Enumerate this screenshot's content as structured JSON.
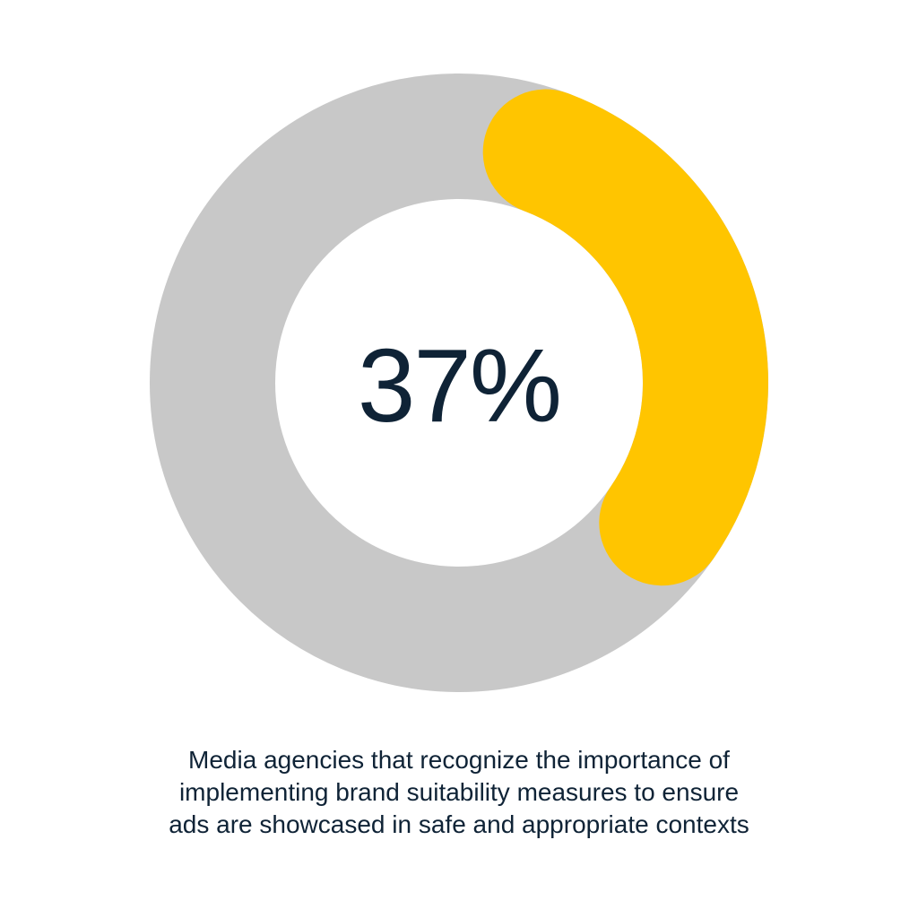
{
  "chart_data": {
    "type": "pie",
    "variant": "donut",
    "value_percent": 37,
    "center_label": "37%",
    "segments": [
      {
        "value": 37,
        "color": "#FFC500"
      },
      {
        "value": 63,
        "color": "#C8C8C8"
      }
    ],
    "caption_lines": [
      "Media agencies that recognize the importance of",
      "implementing brand suitability measures to ensure",
      "ads are showcased in safe and appropriate contexts"
    ]
  },
  "colors": {
    "highlight": "#FFC500",
    "remainder": "#C8C8C8",
    "text": "#0F2336",
    "background": "#FFFFFF"
  }
}
